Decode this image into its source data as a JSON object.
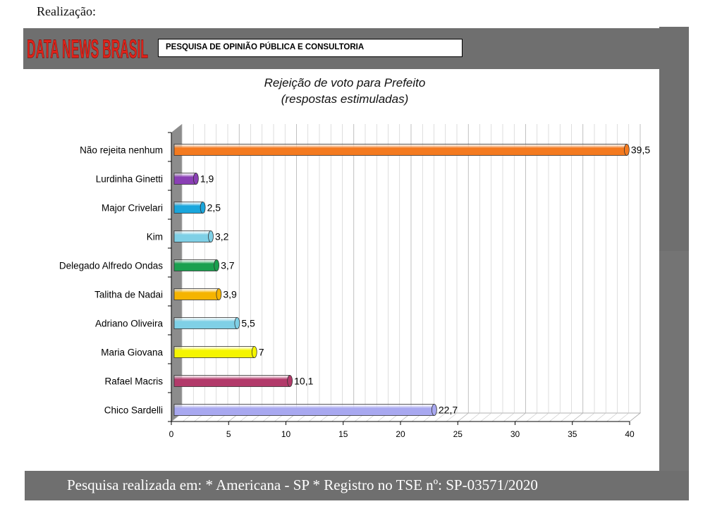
{
  "header": {
    "top_label": "Realização:",
    "logo_text": "DATA NEWS BRASIL",
    "subtitle": "PESQUISA DE OPINIÃO PÚBLICA E CONSULTORIA"
  },
  "footer": {
    "text": "Pesquisa realizada  em:  *  Americana - SP * Registro no TSE nº: SP-03571/2020"
  },
  "chart_data": {
    "type": "bar",
    "orientation": "horizontal",
    "title": "Rejeição de voto para Prefeito",
    "subtitle": "(respostas estimuladas)",
    "categories": [
      "Não rejeita nenhum",
      "Lurdinha Ginetti",
      "Major Crivelari",
      "Kim",
      "Delegado Alfredo Ondas",
      "Talitha de Nadai",
      "Adriano Oliveira",
      "Maria Giovana",
      "Rafael Macris",
      "Chico Sardelli"
    ],
    "values": [
      39.5,
      1.9,
      2.5,
      3.2,
      3.7,
      3.9,
      5.5,
      7,
      10.1,
      22.7
    ],
    "value_labels": [
      "39,5",
      "1,9",
      "2,5",
      "3,2",
      "3,7",
      "3,9",
      "5,5",
      "7",
      "10,1",
      "22,7"
    ],
    "colors": [
      "#f47a1f",
      "#8a3fb5",
      "#1aa6dc",
      "#7fd0e6",
      "#1aa04f",
      "#f5b400",
      "#7fd0e6",
      "#f5f500",
      "#b23a6a",
      "#a8a8f0"
    ],
    "xlim": [
      0,
      40
    ],
    "xticks": [
      "0",
      "5",
      "10",
      "15",
      "20",
      "25",
      "30",
      "35",
      "40"
    ],
    "grid": true
  }
}
